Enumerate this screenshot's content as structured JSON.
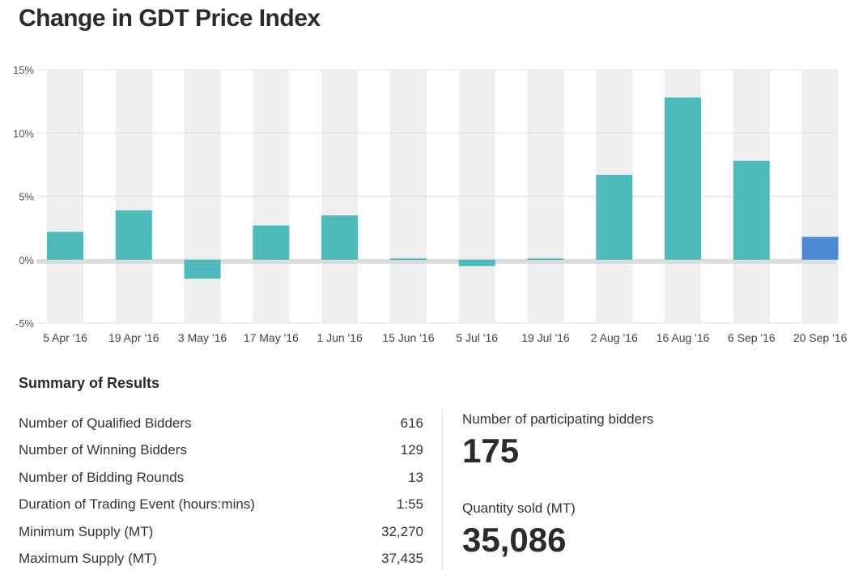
{
  "page_title": "Change in GDT Price Index",
  "chart_data": {
    "type": "bar",
    "title": "Change in GDT Price Index",
    "xlabel": "",
    "ylabel": "",
    "categories": [
      "5 Apr '16",
      "19 Apr '16",
      "3 May '16",
      "17 May '16",
      "1 Jun '16",
      "15 Jun '16",
      "5 Jul '16",
      "19 Jul '16",
      "2 Aug '16",
      "16 Aug '16",
      "6 Sep '16",
      "20 Sep '16"
    ],
    "values": [
      2.2,
      3.9,
      -1.5,
      2.7,
      3.5,
      0.1,
      -0.5,
      0.1,
      6.7,
      12.8,
      7.8,
      1.8
    ],
    "ylim": [
      -5,
      15
    ],
    "yticks": [
      -5,
      0,
      5,
      10,
      15
    ],
    "ytick_labels": [
      "-5%",
      "0%",
      "5%",
      "10%",
      "15%"
    ],
    "colors": {
      "default": "#4dbbbb",
      "highlight": "#4d8bd6",
      "column_shade": "#efefef",
      "zero_band": "#dcdcdc"
    },
    "highlight_index": 11,
    "grid": true
  },
  "summary": {
    "title": "Summary of Results",
    "rows": [
      {
        "label": "Number of Qualified Bidders",
        "value": "616"
      },
      {
        "label": "Number of Winning Bidders",
        "value": "129"
      },
      {
        "label": "Number of Bidding Rounds",
        "value": "13"
      },
      {
        "label": "Duration of Trading Event (hours:mins)",
        "value": "1:55"
      },
      {
        "label": "Minimum Supply (MT)",
        "value": "32,270"
      },
      {
        "label": "Maximum Supply (MT)",
        "value": "37,435"
      }
    ]
  },
  "stats": {
    "participating_label": "Number of participating bidders",
    "participating_value": "175",
    "quantity_label": "Quantity sold (MT)",
    "quantity_value": "35,086"
  }
}
